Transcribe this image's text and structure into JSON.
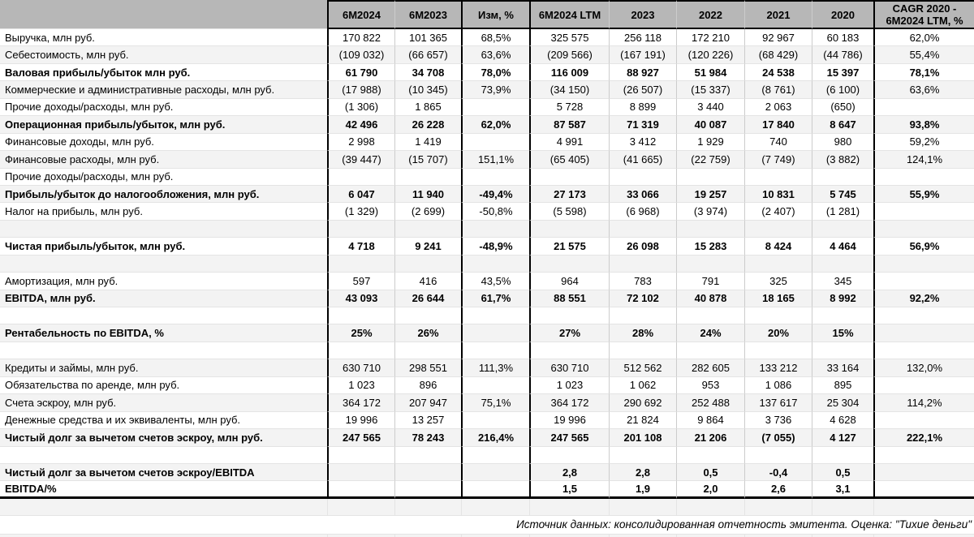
{
  "colors": {
    "header_bg": "#b7b7b7",
    "band_bg": "#f3f3f3",
    "grid_line": "#e4e4e4",
    "column_line": "#cccccc",
    "strong_line": "#000000"
  },
  "table": {
    "columns": [
      "",
      "6M2024",
      "6M2023",
      "Изм, %",
      "6M2024 LTM",
      "2023",
      "2022",
      "2021",
      "2020",
      "CAGR 2020 - 6M2024 LTM, %"
    ],
    "rows": [
      {
        "label": "Выручка, млн руб.",
        "bold": false,
        "values": [
          "170 822",
          "101 365",
          "68,5%",
          "325 575",
          "256 118",
          "172 210",
          "92 967",
          "60 183",
          "62,0%"
        ]
      },
      {
        "label": "Себестоимость, млн руб.",
        "bold": false,
        "values": [
          "(109 032)",
          "(66 657)",
          "63,6%",
          "(209 566)",
          "(167 191)",
          "(120 226)",
          "(68 429)",
          "(44 786)",
          "55,4%"
        ]
      },
      {
        "label": "Валовая прибыль/убыток млн руб.",
        "bold": true,
        "values": [
          "61 790",
          "34 708",
          "78,0%",
          "116 009",
          "88 927",
          "51 984",
          "24 538",
          "15 397",
          "78,1%"
        ]
      },
      {
        "label": "Коммерческие и административные расходы, млн руб.",
        "bold": false,
        "values": [
          "(17 988)",
          "(10 345)",
          "73,9%",
          "(34 150)",
          "(26 507)",
          "(15 337)",
          "(8 761)",
          "(6 100)",
          "63,6%"
        ]
      },
      {
        "label": "Прочие доходы/расходы, млн руб.",
        "bold": false,
        "values": [
          "(1 306)",
          "1 865",
          "",
          "5 728",
          "8 899",
          "3 440",
          "2 063",
          "(650)",
          ""
        ]
      },
      {
        "label": "Операционная прибыль/убыток, млн руб.",
        "bold": true,
        "values": [
          "42 496",
          "26 228",
          "62,0%",
          "87 587",
          "71 319",
          "40 087",
          "17 840",
          "8 647",
          "93,8%"
        ]
      },
      {
        "label": "Финансовые доходы, млн руб.",
        "bold": false,
        "values": [
          "2 998",
          "1 419",
          "",
          "4 991",
          "3 412",
          "1 929",
          "740",
          "980",
          "59,2%"
        ]
      },
      {
        "label": "Финансовые расходы, млн руб.",
        "bold": false,
        "values": [
          "(39 447)",
          "(15 707)",
          "151,1%",
          "(65 405)",
          "(41 665)",
          "(22 759)",
          "(7 749)",
          "(3 882)",
          "124,1%"
        ]
      },
      {
        "label": "Прочие доходы/расходы, млн руб.",
        "bold": false,
        "values": [
          "",
          "",
          "",
          "",
          "",
          "",
          "",
          "",
          ""
        ]
      },
      {
        "label": "Прибыль/убыток до налогообложения, млн руб.",
        "bold": true,
        "values": [
          "6 047",
          "11 940",
          "-49,4%",
          "27 173",
          "33 066",
          "19 257",
          "10 831",
          "5 745",
          "55,9%"
        ]
      },
      {
        "label": "Налог на прибыль, млн руб.",
        "bold": false,
        "values": [
          "(1 329)",
          "(2 699)",
          "-50,8%",
          "(5 598)",
          "(6 968)",
          "(3 974)",
          "(2 407)",
          "(1 281)",
          ""
        ]
      },
      {
        "label": "",
        "bold": false,
        "values": [
          "",
          "",
          "",
          "",
          "",
          "",
          "",
          "",
          ""
        ]
      },
      {
        "label": "Чистая прибыль/убыток, млн руб.",
        "bold": true,
        "values": [
          "4 718",
          "9 241",
          "-48,9%",
          "21 575",
          "26 098",
          "15 283",
          "8 424",
          "4 464",
          "56,9%"
        ]
      },
      {
        "label": "",
        "bold": false,
        "values": [
          "",
          "",
          "",
          "",
          "",
          "",
          "",
          "",
          ""
        ]
      },
      {
        "label": "Амортизация, млн руб.",
        "bold": false,
        "values": [
          "597",
          "416",
          "43,5%",
          "964",
          "783",
          "791",
          "325",
          "345",
          ""
        ]
      },
      {
        "label": "EBITDA, млн руб.",
        "bold": true,
        "values": [
          "43 093",
          "26 644",
          "61,7%",
          "88 551",
          "72 102",
          "40 878",
          "18 165",
          "8 992",
          "92,2%"
        ]
      },
      {
        "label": "",
        "bold": false,
        "values": [
          "",
          "",
          "",
          "",
          "",
          "",
          "",
          "",
          ""
        ]
      },
      {
        "label": "Рентабельность по EBITDA, %",
        "bold": true,
        "values": [
          "25%",
          "26%",
          "",
          "27%",
          "28%",
          "24%",
          "20%",
          "15%",
          ""
        ]
      },
      {
        "label": "",
        "bold": false,
        "values": [
          "",
          "",
          "",
          "",
          "",
          "",
          "",
          "",
          ""
        ]
      },
      {
        "label": "Кредиты и займы, млн руб.",
        "bold": false,
        "values": [
          "630 710",
          "298 551",
          "111,3%",
          "630 710",
          "512 562",
          "282 605",
          "133 212",
          "33 164",
          "132,0%"
        ]
      },
      {
        "label": "Обязательства по аренде, млн руб.",
        "bold": false,
        "values": [
          "1 023",
          "896",
          "",
          "1 023",
          "1 062",
          "953",
          "1 086",
          "895",
          ""
        ]
      },
      {
        "label": "Счета эскроу, млн руб.",
        "bold": false,
        "values": [
          "364 172",
          "207 947",
          "75,1%",
          "364 172",
          "290 692",
          "252 488",
          "137 617",
          "25 304",
          "114,2%"
        ]
      },
      {
        "label": "Денежные средства и их эквиваленты, млн руб.",
        "bold": false,
        "values": [
          "19 996",
          "13 257",
          "",
          "19 996",
          "21 824",
          "9 864",
          "3 736",
          "4 628",
          ""
        ]
      },
      {
        "label": "Чистый долг за вычетом счетов эскроу, млн руб.",
        "bold": true,
        "values": [
          "247 565",
          "78 243",
          "216,4%",
          "247 565",
          "201 108",
          "21 206",
          "(7 055)",
          "4 127",
          "222,1%"
        ]
      },
      {
        "label": "",
        "bold": false,
        "values": [
          "",
          "",
          "",
          "",
          "",
          "",
          "",
          "",
          ""
        ]
      },
      {
        "label": "Чистый долг за вычетом счетов эскроу/EBITDA",
        "bold": true,
        "values": [
          "",
          "",
          "",
          "2,8",
          "2,8",
          "0,5",
          "-0,4",
          "0,5",
          ""
        ]
      },
      {
        "label": "EBITDA/%",
        "bold": true,
        "values": [
          "",
          "",
          "",
          "1,5",
          "1,9",
          "2,0",
          "2,6",
          "3,1",
          ""
        ]
      }
    ]
  },
  "footer": {
    "source_note": "Источник данных: консолидированная отчетность эмитента. Оценка: \"Тихие деньги\""
  }
}
